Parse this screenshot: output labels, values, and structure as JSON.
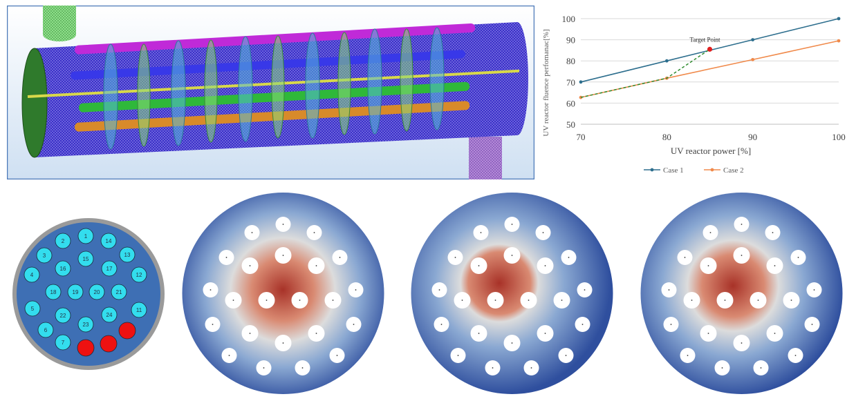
{
  "chart_data": {
    "type": "line",
    "xlabel": "UV reactor power [%]",
    "ylabel": "UV reactor fluence perfomanac[%]",
    "xlim": [
      70,
      100
    ],
    "ylim": [
      50,
      100
    ],
    "x_ticks": [
      "70",
      "80",
      "90",
      "100"
    ],
    "y_ticks": [
      "50",
      "60",
      "70",
      "80",
      "90",
      "100"
    ],
    "grid": "horizontal",
    "legend_position": "bottom",
    "series": [
      {
        "name": "Case 1",
        "color": "#2e6f8e",
        "x": [
          70,
          80,
          90,
          100
        ],
        "y": [
          70,
          80,
          90,
          100
        ]
      },
      {
        "name": "Case 2",
        "color": "#f08a4b",
        "x": [
          70,
          80,
          90,
          100
        ],
        "y": [
          62.7,
          71.8,
          80.6,
          89.5
        ]
      }
    ],
    "dashed_path": {
      "color": "#2e8b2e",
      "x": [
        70,
        80,
        85
      ],
      "y": [
        62.7,
        71.8,
        85.5
      ]
    },
    "annotation": {
      "text": "Target Point",
      "x": 85,
      "y": 85.5,
      "color": "#e02020"
    }
  },
  "lamp_layout": {
    "lamps": [
      {
        "label": "1",
        "state": "on"
      },
      {
        "label": "2",
        "state": "on"
      },
      {
        "label": "3",
        "state": "on"
      },
      {
        "label": "4",
        "state": "on"
      },
      {
        "label": "5",
        "state": "on"
      },
      {
        "label": "6",
        "state": "on"
      },
      {
        "label": "7",
        "state": "on"
      },
      {
        "label": "",
        "state": "off"
      },
      {
        "label": "",
        "state": "off"
      },
      {
        "label": "",
        "state": "off"
      },
      {
        "label": "11",
        "state": "on"
      },
      {
        "label": "12",
        "state": "on"
      },
      {
        "label": "13",
        "state": "on"
      },
      {
        "label": "14",
        "state": "on"
      },
      {
        "label": "15",
        "state": "on"
      },
      {
        "label": "16",
        "state": "on"
      },
      {
        "label": "17",
        "state": "on"
      },
      {
        "label": "18",
        "state": "on"
      },
      {
        "label": "19",
        "state": "on"
      },
      {
        "label": "20",
        "state": "on"
      },
      {
        "label": "21",
        "state": "on"
      },
      {
        "label": "22",
        "state": "on"
      },
      {
        "label": "23",
        "state": "on"
      },
      {
        "label": "24",
        "state": "on"
      }
    ],
    "colors": {
      "on": "#33ddee",
      "off": "#ee1111",
      "background": "#3e6fb4",
      "rim": "#9a9a9a"
    }
  },
  "contour_maps": {
    "colors": {
      "hot": "#a83228",
      "warm": "#d98a72",
      "neutral": "#dcdcdc",
      "cool": "#8aa8d2",
      "cold": "#2f4f9e"
    }
  }
}
